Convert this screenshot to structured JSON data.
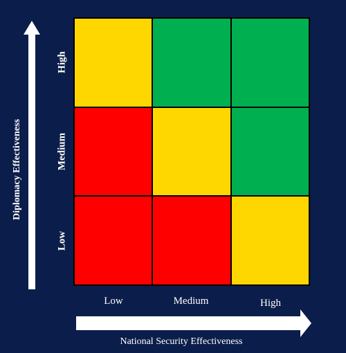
{
  "colors": {
    "background": "#0b1d4a",
    "red": "#ff0000",
    "yellow": "#ffd700",
    "green": "#00b050",
    "text": "#ffffff"
  },
  "y_axis": {
    "title": "Diplomacy Effectiveness",
    "ticks": [
      "High",
      "Medium",
      "Low"
    ]
  },
  "x_axis": {
    "title": "National Security  Effectiveness",
    "ticks": [
      "Low",
      "Medium",
      "High"
    ]
  },
  "matrix": {
    "rows": [
      {
        "diplomacy": "High",
        "cells": [
          "yellow",
          "green",
          "green"
        ]
      },
      {
        "diplomacy": "Medium",
        "cells": [
          "red",
          "yellow",
          "green"
        ]
      },
      {
        "diplomacy": "Low",
        "cells": [
          "red",
          "red",
          "yellow"
        ]
      }
    ]
  }
}
